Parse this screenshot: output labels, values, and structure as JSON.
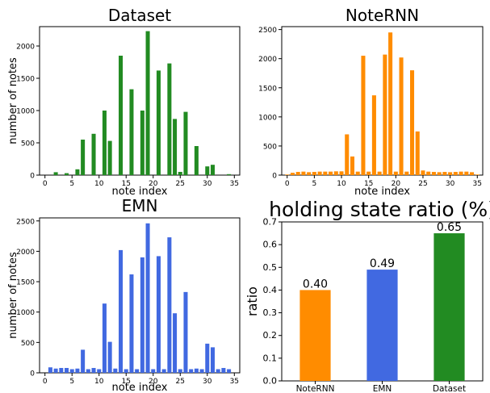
{
  "chart_data": [
    {
      "type": "bar",
      "title": "Dataset",
      "xlabel": "note index",
      "ylabel": "number of notes",
      "color": "#228b22",
      "xlim": [
        -1,
        36
      ],
      "ylim": [
        0,
        2300
      ],
      "xticks": [
        "0",
        "5",
        "10",
        "15",
        "20",
        "25",
        "30",
        "35"
      ],
      "yticks": [
        "0",
        "500",
        "1000",
        "1500",
        "2000"
      ],
      "x": [
        0,
        1,
        2,
        3,
        4,
        5,
        6,
        7,
        8,
        9,
        10,
        11,
        12,
        13,
        14,
        15,
        16,
        17,
        18,
        19,
        20,
        21,
        22,
        23,
        24,
        25,
        26,
        27,
        28,
        29,
        30,
        31,
        32,
        33,
        34,
        35
      ],
      "values": [
        0,
        0,
        45,
        0,
        30,
        0,
        90,
        550,
        0,
        640,
        0,
        1000,
        530,
        0,
        1850,
        0,
        1330,
        0,
        1000,
        2230,
        0,
        1620,
        0,
        1730,
        870,
        50,
        980,
        0,
        450,
        0,
        135,
        160,
        0,
        0,
        15,
        0
      ]
    },
    {
      "type": "bar",
      "title": "NoteRNN",
      "xlabel": "note index",
      "ylabel": "",
      "color": "#ff8c00",
      "xlim": [
        -1,
        36
      ],
      "ylim": [
        0,
        2550
      ],
      "xticks": [
        "0",
        "5",
        "10",
        "15",
        "20",
        "25",
        "30",
        "35"
      ],
      "yticks": [
        "0",
        "500",
        "1000",
        "1500",
        "2000",
        "2500"
      ],
      "x": [
        0,
        1,
        2,
        3,
        4,
        5,
        6,
        7,
        8,
        9,
        10,
        11,
        12,
        13,
        14,
        15,
        16,
        17,
        18,
        19,
        20,
        21,
        22,
        23,
        24,
        25,
        26,
        27,
        28,
        29,
        30,
        31,
        32,
        33,
        34,
        35
      ],
      "values": [
        10,
        40,
        55,
        60,
        50,
        55,
        60,
        60,
        60,
        65,
        65,
        700,
        320,
        60,
        2050,
        60,
        1370,
        60,
        2070,
        2450,
        60,
        2020,
        60,
        1800,
        750,
        80,
        60,
        55,
        50,
        55,
        50,
        55,
        60,
        60,
        50,
        10
      ]
    },
    {
      "type": "bar",
      "title": "EMN",
      "xlabel": "note index",
      "ylabel": "number of notes",
      "color": "#4169e1",
      "xlim": [
        -1,
        36
      ],
      "ylim": [
        0,
        2550
      ],
      "xticks": [
        "0",
        "5",
        "10",
        "15",
        "20",
        "25",
        "30",
        "35"
      ],
      "yticks": [
        "0",
        "500",
        "1000",
        "1500",
        "2000",
        "2500"
      ],
      "x": [
        0,
        1,
        2,
        3,
        4,
        5,
        6,
        7,
        8,
        9,
        10,
        11,
        12,
        13,
        14,
        15,
        16,
        17,
        18,
        19,
        20,
        21,
        22,
        23,
        24,
        25,
        26,
        27,
        28,
        29,
        30,
        31,
        32,
        33,
        34,
        35
      ],
      "values": [
        0,
        90,
        70,
        80,
        80,
        60,
        70,
        380,
        60,
        80,
        60,
        1140,
        510,
        70,
        2020,
        60,
        1620,
        60,
        1900,
        2460,
        60,
        1920,
        60,
        2230,
        980,
        60,
        1330,
        60,
        70,
        60,
        480,
        420,
        60,
        80,
        60,
        0
      ]
    },
    {
      "type": "bar",
      "title": "holding state ratio (%)",
      "xlabel": "",
      "ylabel": "ratio",
      "ylim": [
        0,
        0.7
      ],
      "yticks": [
        "0.0",
        "0.1",
        "0.2",
        "0.3",
        "0.4",
        "0.5",
        "0.6",
        "0.7"
      ],
      "categories": [
        "NoteRNN",
        "EMN",
        "Dataset"
      ],
      "values": [
        0.4,
        0.49,
        0.65
      ],
      "labels": [
        "0.40",
        "0.49",
        "0.65"
      ],
      "colors": [
        "#ff8c00",
        "#4169e1",
        "#228b22"
      ]
    }
  ]
}
